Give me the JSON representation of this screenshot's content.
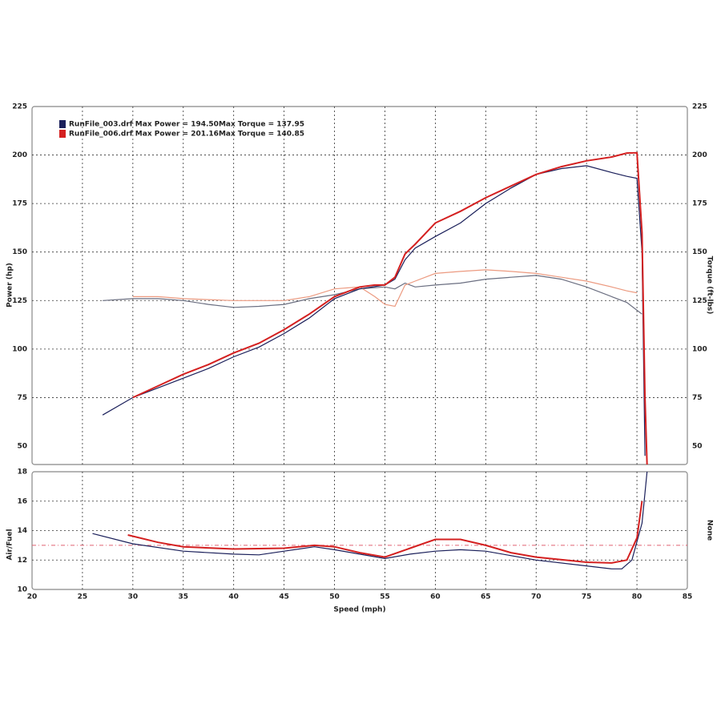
{
  "chart_data": [
    {
      "type": "line",
      "y_label": "Power (hp)",
      "y2_label": "Torque (ft-lbs)",
      "ylim": [
        40.5,
        225
      ],
      "yticks": [
        50,
        75,
        100,
        125,
        150,
        175,
        200,
        225
      ],
      "y2lim": [
        40.5,
        225
      ],
      "y2ticks": [
        50,
        75,
        100,
        125,
        150,
        175,
        200,
        225
      ],
      "grid": true,
      "runs": [
        {
          "name": "RunFile_003.drf Max Power = 194.50Max Torque = 137.95",
          "color": "#1a1f5a",
          "torque_color": "#6a6e80",
          "x": [
            27,
            30,
            32.5,
            35,
            37.5,
            40,
            42.5,
            45,
            47.5,
            50,
            52.5,
            55,
            56,
            57,
            58,
            60,
            62.5,
            65,
            67.5,
            70,
            72.5,
            75,
            77.5,
            79,
            80,
            80.5,
            80.8
          ],
          "power": [
            66,
            75,
            80,
            85,
            90,
            96,
            101,
            108,
            116,
            126,
            131,
            133,
            136,
            146,
            152,
            158,
            165,
            175,
            183,
            190,
            193,
            194.5,
            191,
            189,
            188,
            150,
            45
          ],
          "torque": [
            125,
            126,
            126,
            125,
            123,
            121.5,
            122,
            123,
            126,
            128,
            131,
            132,
            131,
            134,
            132,
            133,
            134,
            136,
            137,
            137.95,
            136,
            132,
            127,
            124,
            120,
            118,
            null
          ]
        },
        {
          "name": "RunFile_006.drf Max Power = 201.16Max Torque = 140.85",
          "color": "#d42020",
          "torque_color": "#ec9a80",
          "x": [
            30,
            32.5,
            35,
            37.5,
            40,
            42.5,
            45,
            47.5,
            50,
            52.5,
            54,
            55,
            56,
            57,
            58,
            60,
            62.5,
            65,
            67.5,
            70,
            72.5,
            75,
            77.5,
            79,
            80,
            80.5,
            80.8,
            81
          ],
          "power": [
            75,
            81,
            87,
            92,
            98,
            103,
            110,
            118,
            127,
            132,
            133,
            133,
            137,
            149,
            154,
            165,
            171,
            178,
            184,
            190,
            194,
            197,
            199,
            201,
            201.16,
            160,
            75,
            40.5
          ],
          "torque": [
            127,
            127,
            126,
            125.5,
            125,
            125,
            125,
            127,
            131,
            132,
            127,
            123,
            122,
            133,
            135,
            139,
            140,
            140.85,
            140,
            139,
            137,
            135,
            132,
            130,
            129,
            null,
            null,
            null
          ]
        }
      ]
    },
    {
      "type": "line",
      "y_label": "Air/Fuel",
      "y2_label": "None",
      "x_label": "Speed (mph)",
      "xlim": [
        20,
        85
      ],
      "xticks": [
        20,
        25,
        30,
        35,
        40,
        45,
        50,
        55,
        60,
        65,
        70,
        75,
        80,
        85
      ],
      "ylim": [
        10,
        18
      ],
      "yticks": [
        10,
        12,
        14,
        16,
        18
      ],
      "grid": true,
      "reference": 13,
      "reference_color": "#e06070",
      "series": [
        {
          "color": "#1a1f5a",
          "x": [
            26,
            30,
            35,
            40,
            42.5,
            45,
            48,
            50,
            52.5,
            55,
            57.5,
            60,
            62.5,
            65,
            70,
            75,
            77.5,
            78.5,
            79.5,
            80.5,
            81
          ],
          "values": [
            13.8,
            13.1,
            12.6,
            12.4,
            12.35,
            12.6,
            12.9,
            12.7,
            12.4,
            12.1,
            12.4,
            12.6,
            12.7,
            12.6,
            12.0,
            11.6,
            11.4,
            11.4,
            12.0,
            14.5,
            18
          ]
        },
        {
          "color": "#d42020",
          "x": [
            29.5,
            32.5,
            35,
            40,
            45,
            48,
            50,
            52.5,
            55,
            57.5,
            60,
            62.5,
            65,
            67.5,
            70,
            75,
            77.5,
            79,
            80,
            80.5
          ],
          "values": [
            13.7,
            13.2,
            12.9,
            12.75,
            12.8,
            13.0,
            12.9,
            12.5,
            12.2,
            12.8,
            13.4,
            13.4,
            13.0,
            12.5,
            12.2,
            11.85,
            11.8,
            12.0,
            13.5,
            16
          ]
        }
      ]
    }
  ]
}
